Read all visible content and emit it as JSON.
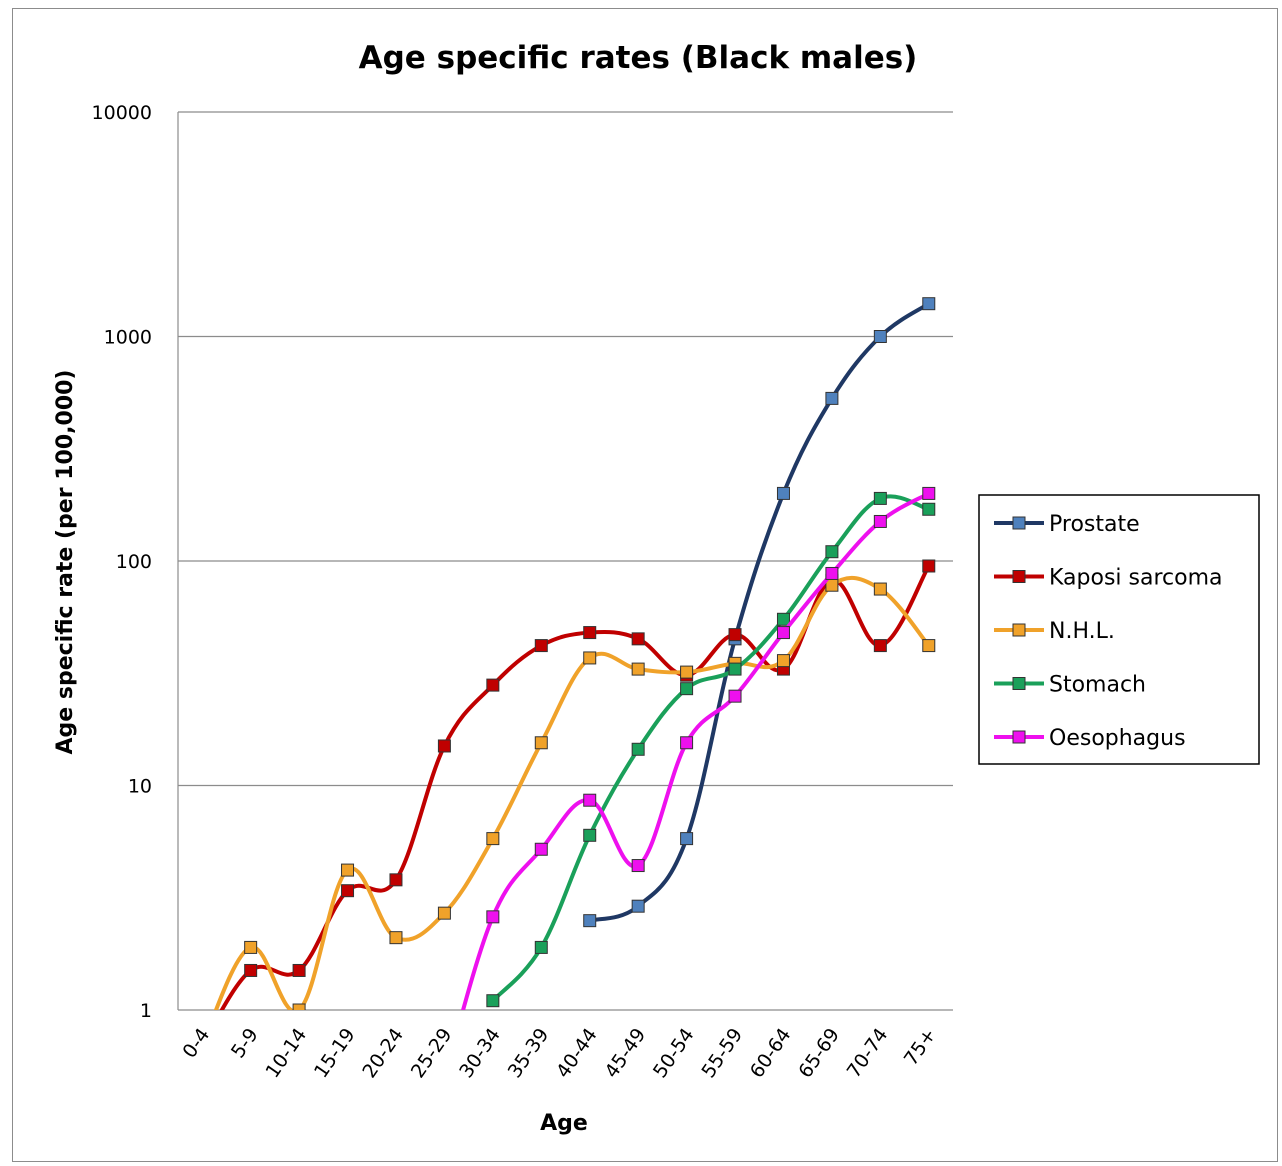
{
  "chart_data": {
    "type": "line",
    "title": "Age specific rates (Black males)",
    "xlabel": "Age",
    "ylabel": "Age specific rate (per 100,000)",
    "y_scale": "log",
    "ylim": [
      1,
      10000
    ],
    "y_ticks": [
      "1",
      "10",
      "100",
      "1000",
      "10000"
    ],
    "y_tick_values": [
      1,
      10,
      100,
      1000,
      10000
    ],
    "grid": "horizontal",
    "legend_position": "right",
    "categories": [
      "0-4",
      "5-9",
      "10-14",
      "15-19",
      "20-24",
      "25-29",
      "30-34",
      "35-39",
      "40-44",
      "45-49",
      "50-54",
      "55-59",
      "60-64",
      "65-69",
      "70-74",
      "75+"
    ],
    "series": [
      {
        "name": "Prostate",
        "color": "#1f3864",
        "marker_color": "#4f81bd",
        "values": [
          null,
          null,
          null,
          null,
          null,
          null,
          null,
          null,
          2.5,
          2.9,
          5.8,
          45,
          200,
          530,
          1000,
          1400
        ]
      },
      {
        "name": "Kaposi sarcoma",
        "color": "#c00000",
        "marker_color": "#c00000",
        "values": [
          0.7,
          1.5,
          1.5,
          3.4,
          3.8,
          15,
          28,
          42,
          48,
          45,
          31,
          47,
          33,
          82,
          42,
          95
        ]
      },
      {
        "name": "N.H.L.",
        "color": "#f0a22a",
        "marker_color": "#f0a22a",
        "values": [
          0.7,
          1.9,
          1.0,
          4.2,
          2.1,
          2.7,
          5.8,
          15.5,
          37,
          33,
          32,
          35,
          36,
          78,
          75,
          42
        ]
      },
      {
        "name": "Stomach",
        "color": "#1aa05a",
        "marker_color": "#1aa05a",
        "values": [
          null,
          null,
          null,
          null,
          null,
          null,
          1.1,
          1.9,
          6.0,
          14.5,
          27,
          33,
          55,
          110,
          190,
          170
        ]
      },
      {
        "name": "Oesophagus",
        "color": "#ee10ee",
        "marker_color": "#ee10ee",
        "values": [
          null,
          null,
          null,
          null,
          null,
          0.5,
          2.6,
          5.2,
          8.6,
          4.4,
          15.5,
          25,
          48,
          88,
          150,
          200
        ]
      }
    ]
  }
}
